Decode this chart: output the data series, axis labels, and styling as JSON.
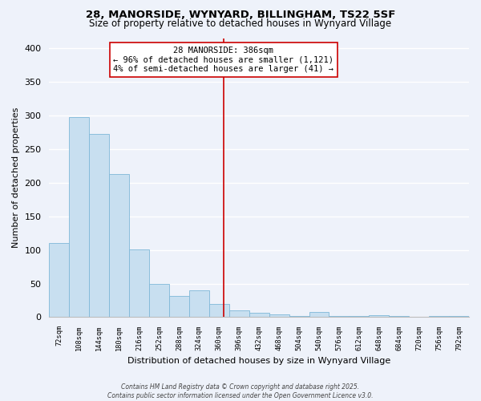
{
  "title": "28, MANORSIDE, WYNYARD, BILLINGHAM, TS22 5SF",
  "subtitle": "Size of property relative to detached houses in Wynyard Village",
  "xlabel": "Distribution of detached houses by size in Wynyard Village",
  "ylabel": "Number of detached properties",
  "bar_edges": [
    72,
    108,
    144,
    180,
    216,
    252,
    288,
    324,
    360,
    396,
    432,
    468,
    504,
    540,
    576,
    612,
    648,
    684,
    720,
    756,
    792,
    828
  ],
  "bar_heights": [
    110,
    298,
    272,
    213,
    101,
    50,
    32,
    40,
    20,
    10,
    7,
    4,
    2,
    8,
    2,
    2,
    3,
    2,
    1,
    2,
    2
  ],
  "bar_color": "#c8dff0",
  "bar_edge_color": "#7fb8d8",
  "vline_x": 386,
  "vline_color": "#cc0000",
  "annotation_title": "28 MANORSIDE: 386sqm",
  "annotation_line1": "← 96% of detached houses are smaller (1,121)",
  "annotation_line2": "4% of semi-detached houses are larger (41) →",
  "ylim": [
    0,
    415
  ],
  "yticks": [
    0,
    50,
    100,
    150,
    200,
    250,
    300,
    350,
    400
  ],
  "background_color": "#eef2fa",
  "grid_color": "#ffffff",
  "footer_line1": "Contains HM Land Registry data © Crown copyright and database right 2025.",
  "footer_line2": "Contains public sector information licensed under the Open Government Licence v3.0."
}
